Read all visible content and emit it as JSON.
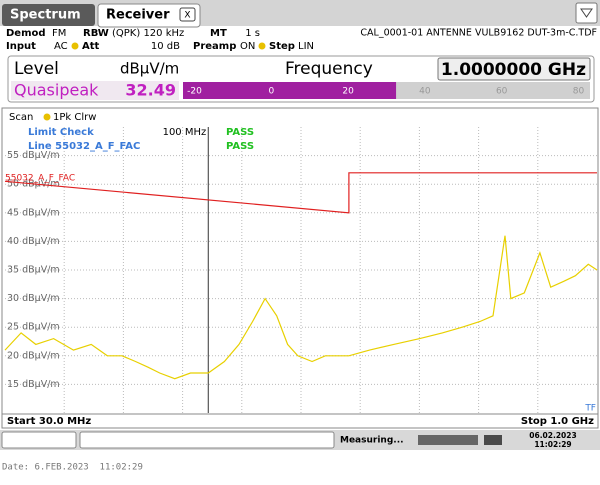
{
  "tabs": [
    "Spectrum",
    "Receiver"
  ],
  "settings": {
    "demod_label": "Demod",
    "demod": "FM",
    "rbw_label": "RBW",
    "rbw": "(QPK) 120 kHz",
    "mt_label": "MT",
    "mt": "1 s",
    "transducer": "CAL_0001-01 ANTENNE VULB9162 DUT-3m-C.TDF",
    "input_label": "Input",
    "input": "AC",
    "att_label": "Att",
    "att": "10 dB",
    "preamp_label": "Preamp",
    "preamp": "ON",
    "step_label": "Step",
    "step": "LIN"
  },
  "readout": {
    "level_label": "Level",
    "unit": "dBµV/m",
    "frequency_label": "Frequency",
    "frequency": "1.0000000 GHz",
    "detector": "Quasipeak",
    "level": 32.49,
    "bar_lim": [
      -23,
      83
    ],
    "bar_ticks": [
      -20,
      0,
      20,
      40,
      60,
      80
    ]
  },
  "chart_data": {
    "type": "line",
    "scan_label": "Scan",
    "limit_check": "Limit Check",
    "limit_check_result": "PASS",
    "limit_line_label": "Line 55032_A_F_FAC",
    "limit_line_result": "PASS",
    "series": [
      {
        "name": "1Pk Clrw",
        "color": "#e8d000",
        "x": [
          30,
          33,
          36,
          40,
          45,
          50,
          55,
          60,
          65,
          70,
          75,
          82,
          90,
          100,
          110,
          120,
          130,
          140,
          150,
          160,
          170,
          185,
          200,
          230,
          260,
          300,
          350,
          400,
          450,
          500,
          540,
          580,
          600,
          650,
          713,
          760,
          820,
          880,
          950,
          1000
        ],
        "values": [
          21,
          24,
          22,
          23,
          21,
          22,
          20,
          20,
          19,
          18,
          17,
          16,
          17,
          17,
          19,
          22,
          26,
          30,
          27,
          22,
          20,
          19,
          20,
          20,
          21,
          22,
          23,
          24,
          25,
          26,
          27,
          41,
          30,
          31,
          38,
          32,
          33,
          34,
          36,
          35
        ]
      },
      {
        "name": "55032_A_F_FAC",
        "color": "#e02020",
        "x": [
          30,
          230,
          230,
          1000
        ],
        "values": [
          50.5,
          45,
          52,
          52
        ]
      }
    ],
    "xlim": [
      30,
      1000
    ],
    "xscale": "log",
    "xticks": [
      {
        "value": 100,
        "label": "100 MHz"
      }
    ],
    "start_label": "Start 30.0 MHz",
    "stop_label": "Stop 1.0 GHz",
    "ylim": [
      10,
      60
    ],
    "yticks": [
      {
        "value": 55,
        "label": "55 dBµV/m"
      },
      {
        "value": 50,
        "label": "50 dBµV/m"
      },
      {
        "value": 45,
        "label": "45 dBµV/m"
      },
      {
        "value": 40,
        "label": "40 dBµV/m"
      },
      {
        "value": 35,
        "label": "35 dBµV/m"
      },
      {
        "value": 30,
        "label": "30 dBµV/m"
      },
      {
        "value": 25,
        "label": "25 dBµV/m"
      },
      {
        "value": 20,
        "label": "20 dBµV/m"
      },
      {
        "value": 15,
        "label": "15 dBµV/m"
      }
    ],
    "grid": true,
    "corner_label": "TF"
  },
  "status": {
    "measuring": "Measuring...",
    "date": "06.02.2023",
    "time": "11:02:29"
  },
  "footer": "Date: 6.FEB.2023  11:02:29"
}
